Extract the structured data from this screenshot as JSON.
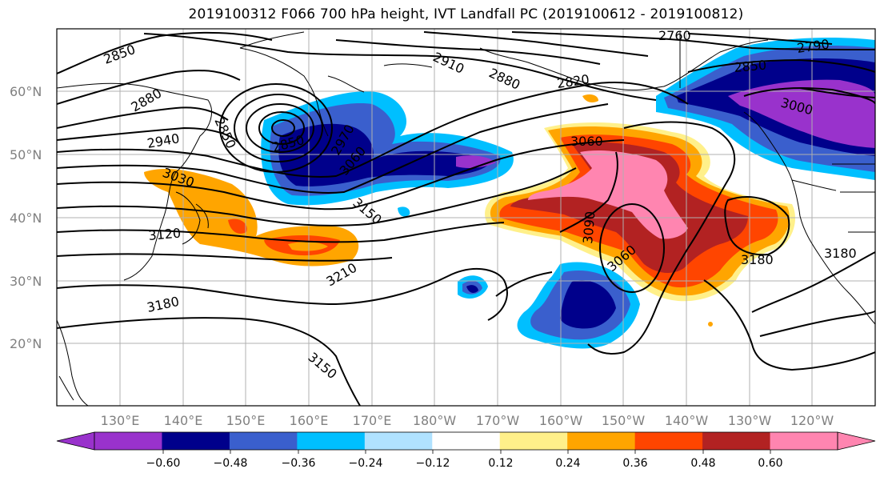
{
  "title": "2019100312 F066 700 hPa height, IVT Landfall PC (2019100612 - 2019100812)",
  "lat_labels": [
    "60°N",
    "50°N",
    "40°N",
    "30°N",
    "20°N"
  ],
  "lon_labels": [
    "130°E",
    "140°E",
    "150°E",
    "160°E",
    "170°E",
    "180°W",
    "170°W",
    "160°W",
    "150°W",
    "140°W",
    "130°W",
    "120°W"
  ],
  "contour_labels": [
    "2850",
    "2880",
    "2940",
    "2850",
    "2850",
    "2910",
    "2880",
    "2760",
    "2790",
    "2820",
    "2850",
    "3000",
    "2970",
    "3030",
    "3060",
    "3060",
    "3120",
    "3150",
    "3090",
    "3060",
    "3180",
    "3180",
    "3210",
    "3180",
    "3150"
  ],
  "colorbar": {
    "ticks": [
      "−0.60",
      "−0.48",
      "−0.36",
      "−0.24",
      "−0.12",
      "0.12",
      "0.24",
      "0.36",
      "0.48",
      "0.60"
    ],
    "colors": [
      "#9932cc",
      "#00008b",
      "#3a5fcd",
      "#00bfff",
      "#b0e2ff",
      "#ffffff",
      "#fff08a",
      "#ffa500",
      "#ff4500",
      "#b22222",
      "#ff85b0",
      "#ff85b0"
    ]
  }
}
